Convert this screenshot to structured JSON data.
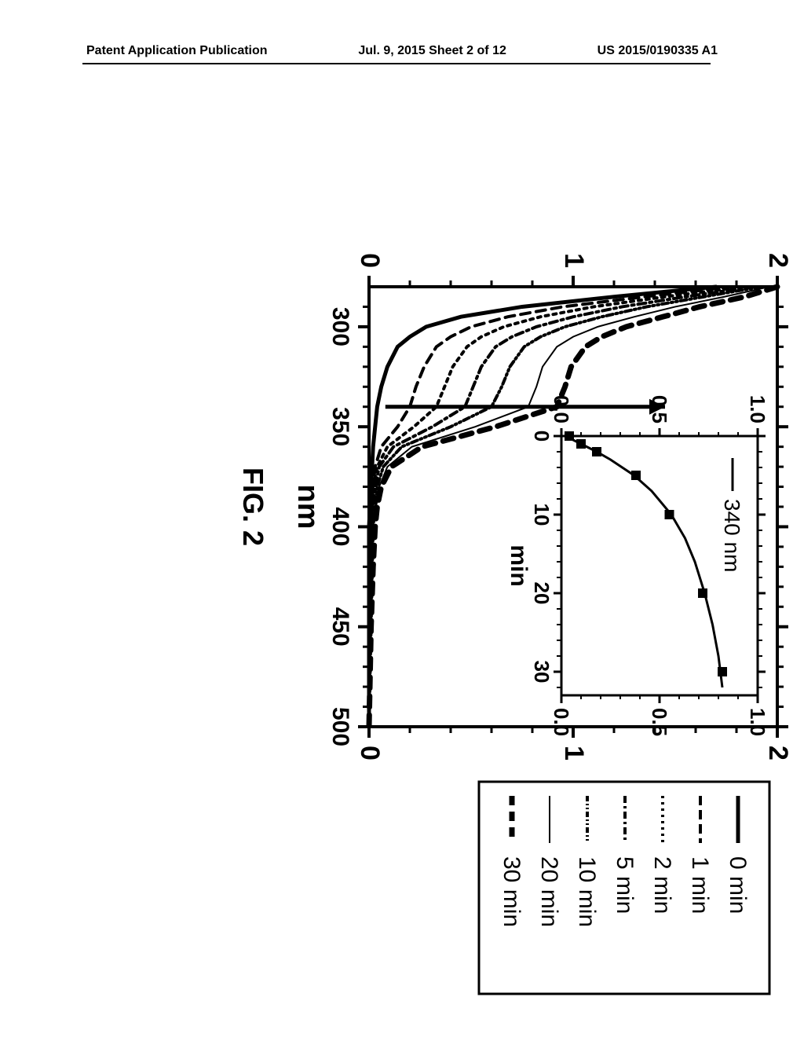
{
  "header": {
    "left": "Patent Application Publication",
    "center": "Jul. 9, 2015   Sheet 2 of 12",
    "right": "US 2015/0190335 A1"
  },
  "figure": {
    "caption": "FIG. 2",
    "main_chart": {
      "type": "line",
      "xlabel": "nm",
      "xlim": [
        280,
        500
      ],
      "xtick_major": [
        300,
        350,
        400,
        450,
        500
      ],
      "ylim": [
        0,
        2
      ],
      "ytick_major": [
        0,
        1,
        2
      ],
      "background_color": "#ffffff",
      "axis_color": "#000000",
      "line_stroke_width": 4,
      "arrow": {
        "x": 340,
        "y_from": 0.08,
        "y_to": 1.45
      },
      "series": [
        {
          "label": "0 min",
          "dash": "solid",
          "weight": 5,
          "points": [
            [
              280,
              1.7
            ],
            [
              285,
              1.2
            ],
            [
              290,
              0.75
            ],
            [
              295,
              0.45
            ],
            [
              300,
              0.28
            ],
            [
              305,
              0.2
            ],
            [
              310,
              0.14
            ],
            [
              320,
              0.09
            ],
            [
              330,
              0.06
            ],
            [
              340,
              0.04
            ],
            [
              350,
              0.03
            ],
            [
              360,
              0.02
            ],
            [
              380,
              0.01
            ],
            [
              400,
              0.0
            ],
            [
              500,
              0.0
            ]
          ]
        },
        {
          "label": "1 min",
          "dash": "12,8",
          "weight": 4,
          "points": [
            [
              280,
              1.78
            ],
            [
              285,
              1.35
            ],
            [
              290,
              0.95
            ],
            [
              295,
              0.68
            ],
            [
              300,
              0.5
            ],
            [
              305,
              0.4
            ],
            [
              310,
              0.33
            ],
            [
              320,
              0.27
            ],
            [
              330,
              0.23
            ],
            [
              340,
              0.2
            ],
            [
              350,
              0.14
            ],
            [
              360,
              0.06
            ],
            [
              370,
              0.03
            ],
            [
              380,
              0.02
            ],
            [
              400,
              0.01
            ],
            [
              500,
              0.0
            ]
          ]
        },
        {
          "label": "2 min",
          "dash": "4,6",
          "weight": 4,
          "points": [
            [
              280,
              1.83
            ],
            [
              285,
              1.45
            ],
            [
              290,
              1.1
            ],
            [
              295,
              0.84
            ],
            [
              300,
              0.66
            ],
            [
              305,
              0.55
            ],
            [
              310,
              0.48
            ],
            [
              320,
              0.41
            ],
            [
              330,
              0.37
            ],
            [
              340,
              0.33
            ],
            [
              350,
              0.22
            ],
            [
              360,
              0.09
            ],
            [
              370,
              0.04
            ],
            [
              380,
              0.02
            ],
            [
              400,
              0.01
            ],
            [
              500,
              0.0
            ]
          ]
        },
        {
          "label": "5 min",
          "dash": "10,5,3,5",
          "weight": 4,
          "points": [
            [
              280,
              1.88
            ],
            [
              285,
              1.55
            ],
            [
              290,
              1.24
            ],
            [
              295,
              1.0
            ],
            [
              300,
              0.82
            ],
            [
              305,
              0.7
            ],
            [
              310,
              0.62
            ],
            [
              320,
              0.55
            ],
            [
              330,
              0.51
            ],
            [
              340,
              0.47
            ],
            [
              350,
              0.31
            ],
            [
              360,
              0.12
            ],
            [
              370,
              0.05
            ],
            [
              380,
              0.03
            ],
            [
              400,
              0.01
            ],
            [
              500,
              0.0
            ]
          ]
        },
        {
          "label": "10 min",
          "dash": "8,4,2,4,2,4",
          "weight": 4,
          "points": [
            [
              280,
              1.92
            ],
            [
              285,
              1.64
            ],
            [
              290,
              1.36
            ],
            [
              295,
              1.14
            ],
            [
              300,
              0.96
            ],
            [
              305,
              0.84
            ],
            [
              310,
              0.76
            ],
            [
              320,
              0.69
            ],
            [
              330,
              0.65
            ],
            [
              340,
              0.6
            ],
            [
              350,
              0.4
            ],
            [
              360,
              0.16
            ],
            [
              370,
              0.07
            ],
            [
              380,
              0.04
            ],
            [
              400,
              0.02
            ],
            [
              500,
              0.0
            ]
          ]
        },
        {
          "label": "20 min",
          "dash": "solid",
          "weight": 2,
          "points": [
            [
              280,
              1.96
            ],
            [
              285,
              1.74
            ],
            [
              290,
              1.5
            ],
            [
              295,
              1.3
            ],
            [
              300,
              1.12
            ],
            [
              305,
              1.0
            ],
            [
              310,
              0.92
            ],
            [
              320,
              0.85
            ],
            [
              330,
              0.82
            ],
            [
              340,
              0.78
            ],
            [
              350,
              0.52
            ],
            [
              360,
              0.21
            ],
            [
              370,
              0.09
            ],
            [
              380,
              0.05
            ],
            [
              400,
              0.02
            ],
            [
              500,
              0.0
            ]
          ]
        },
        {
          "label": "30 min",
          "dash": "14,10",
          "weight": 7,
          "points": [
            [
              280,
              2.0
            ],
            [
              285,
              1.84
            ],
            [
              290,
              1.62
            ],
            [
              295,
              1.44
            ],
            [
              300,
              1.26
            ],
            [
              305,
              1.14
            ],
            [
              310,
              1.06
            ],
            [
              320,
              0.99
            ],
            [
              330,
              0.96
            ],
            [
              340,
              0.92
            ],
            [
              350,
              0.62
            ],
            [
              360,
              0.26
            ],
            [
              370,
              0.11
            ],
            [
              380,
              0.06
            ],
            [
              390,
              0.04
            ],
            [
              400,
              0.03
            ],
            [
              420,
              0.02
            ],
            [
              450,
              0.01
            ],
            [
              500,
              0.0
            ]
          ]
        }
      ]
    },
    "inset_chart": {
      "type": "scatter-line",
      "label": "340 nm",
      "xlabel": "min",
      "xlim": [
        0,
        33
      ],
      "xtick_major": [
        0,
        10,
        20,
        30
      ],
      "ylim": [
        0,
        1.0
      ],
      "ytick_major": [
        0.0,
        0.5,
        1.0
      ],
      "marker_size": 10,
      "marker_color": "#000000",
      "line_color": "#000000",
      "points": [
        [
          0,
          0.04
        ],
        [
          1,
          0.1
        ],
        [
          2,
          0.18
        ],
        [
          5,
          0.38
        ],
        [
          10,
          0.55
        ],
        [
          20,
          0.72
        ],
        [
          30,
          0.82
        ]
      ],
      "curve": [
        [
          0,
          0.02
        ],
        [
          1,
          0.1
        ],
        [
          2,
          0.18
        ],
        [
          3,
          0.25
        ],
        [
          5,
          0.37
        ],
        [
          7,
          0.46
        ],
        [
          10,
          0.56
        ],
        [
          13,
          0.63
        ],
        [
          16,
          0.68
        ],
        [
          20,
          0.73
        ],
        [
          24,
          0.77
        ],
        [
          28,
          0.8
        ],
        [
          32,
          0.82
        ]
      ]
    },
    "legend": {
      "items": [
        {
          "label": "0 min",
          "dash": "solid",
          "weight": 5
        },
        {
          "label": "1 min",
          "dash": "12,6",
          "weight": 4
        },
        {
          "label": "2 min",
          "dash": "3,5",
          "weight": 4
        },
        {
          "label": "5 min",
          "dash": "9,4,3,4",
          "weight": 4
        },
        {
          "label": "10 min",
          "dash": "7,3,2,3,2,3",
          "weight": 4
        },
        {
          "label": "20 min",
          "dash": "solid",
          "weight": 2
        },
        {
          "label": "30 min",
          "dash": "12,8",
          "weight": 7
        }
      ]
    }
  }
}
